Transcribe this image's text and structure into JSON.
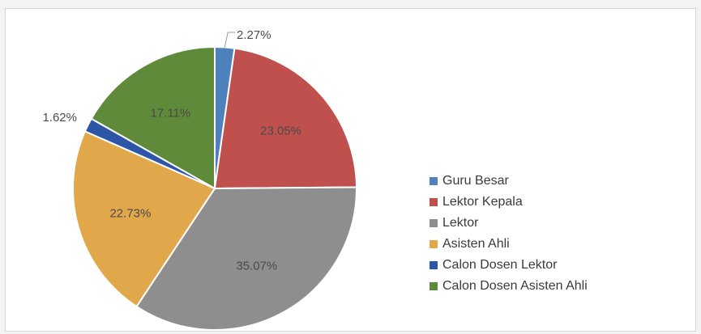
{
  "chart_data": {
    "type": "pie",
    "title": "",
    "start_angle_deg": 0,
    "direction": "clockwise",
    "slices": [
      {
        "label": "Guru Besar",
        "value": 2.27,
        "display": "2.27%",
        "color": "#4f81bd"
      },
      {
        "label": "Lektor Kepala",
        "value": 23.05,
        "display": "23.05%",
        "color": "#c0504d"
      },
      {
        "label": "Lektor",
        "value": 35.07,
        "display": "35.07%",
        "color": "#8e8e8e"
      },
      {
        "label": "Asisten Ahli",
        "value": 22.73,
        "display": "22.73%",
        "color": "#e0a84a"
      },
      {
        "label": "Calon Dosen Lektor",
        "value": 1.62,
        "display": "1.62%",
        "color": "#2e56a6"
      },
      {
        "label": "Calon Dosen Asisten Ahli",
        "value": 17.11,
        "display": "17.11%",
        "color": "#5f8a3a"
      }
    ],
    "legend_position": "right"
  }
}
